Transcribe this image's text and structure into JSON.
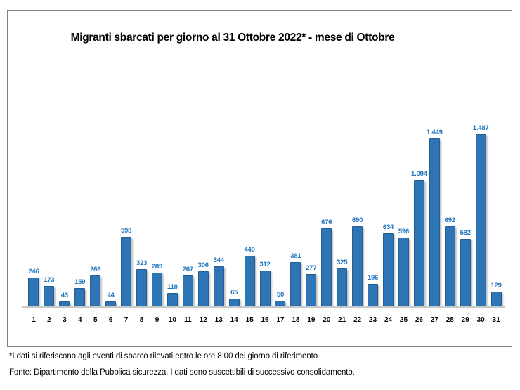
{
  "title": "Migranti sbarcati per giorno al 31 Ottobre 2022* - mese di Ottobre",
  "footnotes": {
    "line1": "*I dati si riferiscono agli eventi di sbarco rilevati entro le ore 8:00 del giorno di riferimento",
    "line2": "Fonte: Dipartimento della Pubblica sicurezza. I dati sono suscettibili di successivo consolidamento."
  },
  "colors": {
    "bar_fill": "#2e75b6",
    "bar_border": "#245d92",
    "value_label": "#2175c0",
    "axis_line": "#c9c9c9",
    "box_border": "#808080",
    "day_label": "#000000"
  },
  "chart_data": {
    "type": "bar",
    "title": "Migranti sbarcati per giorno al 31 Ottobre 2022* - mese di Ottobre",
    "xlabel": "",
    "ylabel": "",
    "categories": [
      "1",
      "2",
      "3",
      "4",
      "5",
      "6",
      "7",
      "8",
      "9",
      "10",
      "11",
      "12",
      "13",
      "14",
      "15",
      "16",
      "17",
      "18",
      "19",
      "20",
      "21",
      "22",
      "23",
      "24",
      "25",
      "26",
      "27",
      "28",
      "29",
      "30",
      "31"
    ],
    "values": [
      246,
      173,
      43,
      159,
      266,
      44,
      598,
      323,
      289,
      118,
      267,
      306,
      344,
      65,
      440,
      312,
      50,
      381,
      277,
      676,
      325,
      690,
      196,
      634,
      596,
      1094,
      1449,
      692,
      582,
      1487,
      129
    ],
    "value_labels": [
      "246",
      "173",
      "43",
      "159",
      "266",
      "44",
      "598",
      "323",
      "289",
      "118",
      "267",
      "306",
      "344",
      "65",
      "440",
      "312",
      "50",
      "381",
      "277",
      "676",
      "325",
      "690",
      "196",
      "634",
      "596",
      "1.094",
      "1.449",
      "692",
      "582",
      "1.487",
      "129"
    ],
    "ylim": [
      0,
      1550
    ],
    "grid": false,
    "legend": false,
    "data_labels": "above bars, blue bold",
    "number_format": "italian thousands separator (.)"
  }
}
